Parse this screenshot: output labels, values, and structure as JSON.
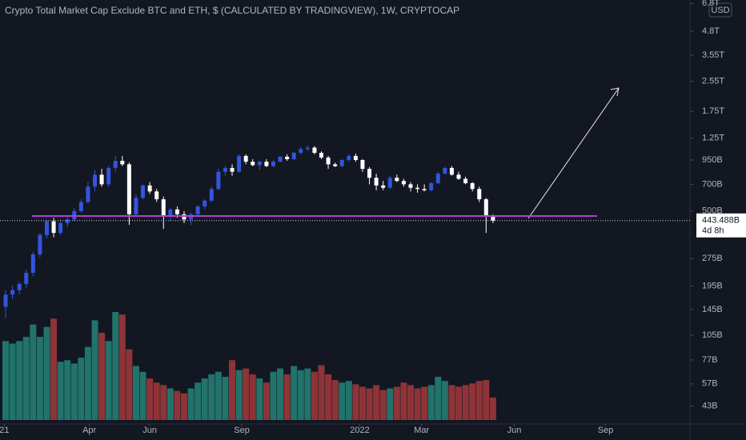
{
  "chart_data": {
    "type": "candlestick",
    "title": "Crypto Total Market Cap Exclude BTC and ETH, $ (CALCULATED BY TRADINGVIEW), 1W, CRYPTOCAP",
    "currency": "USD",
    "log_scale": true,
    "grid": false,
    "up_color": "#3355dd",
    "down_color": "#ffffff",
    "volume_up_color": "#22736c",
    "volume_down_color": "#8e3438",
    "level_color": "#b040d0",
    "xlim": [
      -0.82,
      99.7
    ],
    "xticks": [
      {
        "value": -0.2,
        "label": "21"
      },
      {
        "value": 12.2,
        "label": "Apr"
      },
      {
        "value": 21.0,
        "label": "Jun"
      },
      {
        "value": 34.4,
        "label": "Sep"
      },
      {
        "value": 51.6,
        "label": "2022"
      },
      {
        "value": 60.6,
        "label": "Mar"
      },
      {
        "value": 74.1,
        "label": "Jun"
      },
      {
        "value": 87.4,
        "label": "Sep"
      }
    ],
    "ylim": [
      34.4,
      7100
    ],
    "yticks": [
      {
        "value": 6800,
        "label": "6.8T"
      },
      {
        "value": 4800,
        "label": "4.8T"
      },
      {
        "value": 3550,
        "label": "3.55T"
      },
      {
        "value": 2550,
        "label": "2.55T"
      },
      {
        "value": 1750,
        "label": "1.75T"
      },
      {
        "value": 1250,
        "label": "1.25T"
      },
      {
        "value": 950,
        "label": "950B"
      },
      {
        "value": 700,
        "label": "700B"
      },
      {
        "value": 500,
        "label": "500B"
      },
      {
        "value": 275,
        "label": "275B"
      },
      {
        "value": 195,
        "label": "195B"
      },
      {
        "value": 145,
        "label": "145B"
      },
      {
        "value": 105,
        "label": "105B"
      },
      {
        "value": 77,
        "label": "77B"
      },
      {
        "value": 57,
        "label": "57B"
      },
      {
        "value": 43,
        "label": "43B"
      }
    ],
    "price_tag": {
      "value": 443.488,
      "label": "443.488B"
    },
    "countdown": "4d 8h",
    "categories": [
      null,
      null,
      null,
      null,
      null,
      null,
      null,
      null,
      null,
      null,
      null,
      null,
      null,
      null,
      null,
      null,
      null,
      null,
      null,
      null,
      null,
      null,
      null,
      null,
      null,
      null,
      null,
      null,
      null,
      null,
      null,
      null,
      null,
      null,
      null,
      null,
      null,
      null,
      null,
      null,
      null,
      null,
      null,
      null,
      null,
      null,
      null,
      null,
      null,
      null,
      null,
      null,
      null,
      null,
      null,
      null,
      null,
      null,
      null,
      null,
      null,
      null,
      null,
      null,
      null,
      null,
      null,
      null,
      null,
      null,
      null,
      null
    ],
    "open": [
      150,
      175,
      185,
      200,
      230,
      290,
      370,
      440,
      380,
      430,
      450,
      500,
      560,
      680,
      790,
      700,
      860,
      940,
      900,
      480,
      590,
      690,
      640,
      580,
      470,
      510,
      480,
      450,
      480,
      530,
      570,
      660,
      820,
      860,
      820,
      1000,
      930,
      890,
      930,
      880,
      930,
      990,
      960,
      1040,
      1090,
      1110,
      1040,
      980,
      900,
      880,
      950,
      1000,
      950,
      850,
      760,
      690,
      670,
      760,
      730,
      700,
      670,
      660,
      650,
      710,
      800,
      860,
      790,
      750,
      710,
      660,
      580,
      470
    ],
    "high": [
      185,
      195,
      205,
      240,
      300,
      380,
      450,
      460,
      450,
      470,
      520,
      580,
      720,
      840,
      850,
      880,
      1000,
      1000,
      920,
      620,
      700,
      720,
      660,
      600,
      520,
      530,
      500,
      490,
      540,
      580,
      680,
      850,
      880,
      900,
      1020,
      1020,
      960,
      940,
      960,
      950,
      1000,
      1020,
      1060,
      1120,
      1140,
      1130,
      1060,
      1000,
      920,
      960,
      1020,
      1030,
      960,
      870,
      800,
      730,
      780,
      790,
      750,
      720,
      700,
      700,
      720,
      820,
      870,
      880,
      820,
      770,
      720,
      680,
      590,
      480
    ],
    "low": [
      130,
      165,
      175,
      190,
      220,
      280,
      355,
      360,
      370,
      410,
      440,
      490,
      550,
      640,
      680,
      680,
      820,
      880,
      420,
      470,
      580,
      620,
      560,
      400,
      440,
      460,
      430,
      420,
      470,
      510,
      560,
      650,
      780,
      780,
      810,
      900,
      880,
      840,
      870,
      870,
      920,
      940,
      950,
      1020,
      1060,
      1020,
      960,
      850,
      870,
      870,
      930,
      930,
      820,
      700,
      650,
      650,
      660,
      720,
      680,
      640,
      630,
      640,
      640,
      700,
      790,
      780,
      740,
      700,
      640,
      560,
      380,
      430
    ],
    "close": [
      175,
      185,
      200,
      230,
      290,
      370,
      440,
      380,
      430,
      450,
      500,
      560,
      680,
      790,
      700,
      860,
      940,
      900,
      480,
      590,
      690,
      640,
      580,
      470,
      510,
      480,
      450,
      480,
      530,
      570,
      660,
      820,
      860,
      820,
      1000,
      930,
      890,
      930,
      880,
      930,
      990,
      960,
      1040,
      1090,
      1110,
      1040,
      980,
      900,
      880,
      950,
      1000,
      950,
      850,
      760,
      690,
      670,
      760,
      730,
      700,
      670,
      660,
      650,
      710,
      800,
      860,
      790,
      750,
      710,
      660,
      580,
      470,
      443.488
    ],
    "volume": [
      95,
      92,
      95,
      100,
      115,
      100,
      112,
      122,
      70,
      72,
      68,
      75,
      88,
      120,
      105,
      95,
      130,
      127,
      85,
      65,
      58,
      50,
      45,
      42,
      38,
      35,
      32,
      38,
      45,
      50,
      55,
      58,
      52,
      72,
      60,
      62,
      55,
      50,
      45,
      58,
      62,
      55,
      65,
      60,
      62,
      58,
      66,
      55,
      48,
      45,
      47,
      43,
      40,
      38,
      42,
      36,
      38,
      40,
      45,
      42,
      38,
      40,
      42,
      52,
      47,
      42,
      40,
      42,
      44,
      47,
      48,
      27
    ]
  }
}
